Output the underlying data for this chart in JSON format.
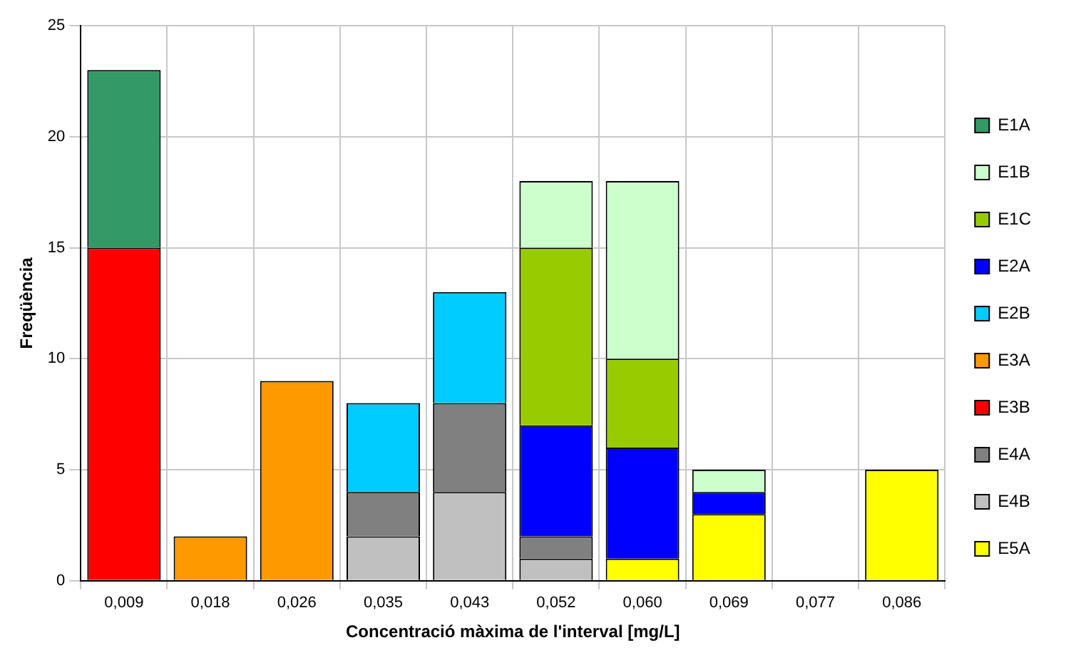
{
  "chart_data": {
    "type": "bar",
    "stacked": true,
    "xlabel": "Concentració màxima de l'interval [mg/L]",
    "ylabel": "Freqüència",
    "categories": [
      "0,009",
      "0,018",
      "0,026",
      "0,035",
      "0,043",
      "0,052",
      "0,060",
      "0,069",
      "0,077",
      "0,086"
    ],
    "series": [
      {
        "name": "E5A",
        "color": "#ffff00",
        "values": [
          0,
          0,
          0,
          0,
          0,
          0,
          1,
          3,
          0,
          5
        ]
      },
      {
        "name": "E4B",
        "color": "#c0c0c0",
        "values": [
          0,
          0,
          0,
          2,
          4,
          1,
          0,
          0,
          0,
          0
        ]
      },
      {
        "name": "E4A",
        "color": "#808080",
        "values": [
          0,
          0,
          0,
          2,
          4,
          1,
          0,
          0,
          0,
          0
        ]
      },
      {
        "name": "E3B",
        "color": "#ff0000",
        "values": [
          15,
          0,
          0,
          0,
          0,
          0,
          0,
          0,
          0,
          0
        ]
      },
      {
        "name": "E3A",
        "color": "#ff9900",
        "values": [
          0,
          2,
          9,
          0,
          0,
          0,
          0,
          0,
          0,
          0
        ]
      },
      {
        "name": "E2B",
        "color": "#00ccff",
        "values": [
          0,
          0,
          0,
          4,
          5,
          0,
          0,
          0,
          0,
          0
        ]
      },
      {
        "name": "E2A",
        "color": "#0000ff",
        "values": [
          0,
          0,
          0,
          0,
          0,
          5,
          5,
          1,
          0,
          0
        ]
      },
      {
        "name": "E1C",
        "color": "#99cc00",
        "values": [
          0,
          0,
          0,
          0,
          0,
          8,
          4,
          0,
          0,
          0
        ]
      },
      {
        "name": "E1B",
        "color": "#ccffcc",
        "values": [
          0,
          0,
          0,
          0,
          0,
          3,
          8,
          1,
          0,
          0
        ]
      },
      {
        "name": "E1A",
        "color": "#339966",
        "values": [
          8,
          0,
          0,
          0,
          0,
          0,
          0,
          0,
          0,
          0
        ]
      }
    ],
    "ylim": [
      0,
      25
    ],
    "yticks": [
      0,
      5,
      10,
      15,
      20,
      25
    ],
    "grid": true,
    "legend": "right"
  }
}
